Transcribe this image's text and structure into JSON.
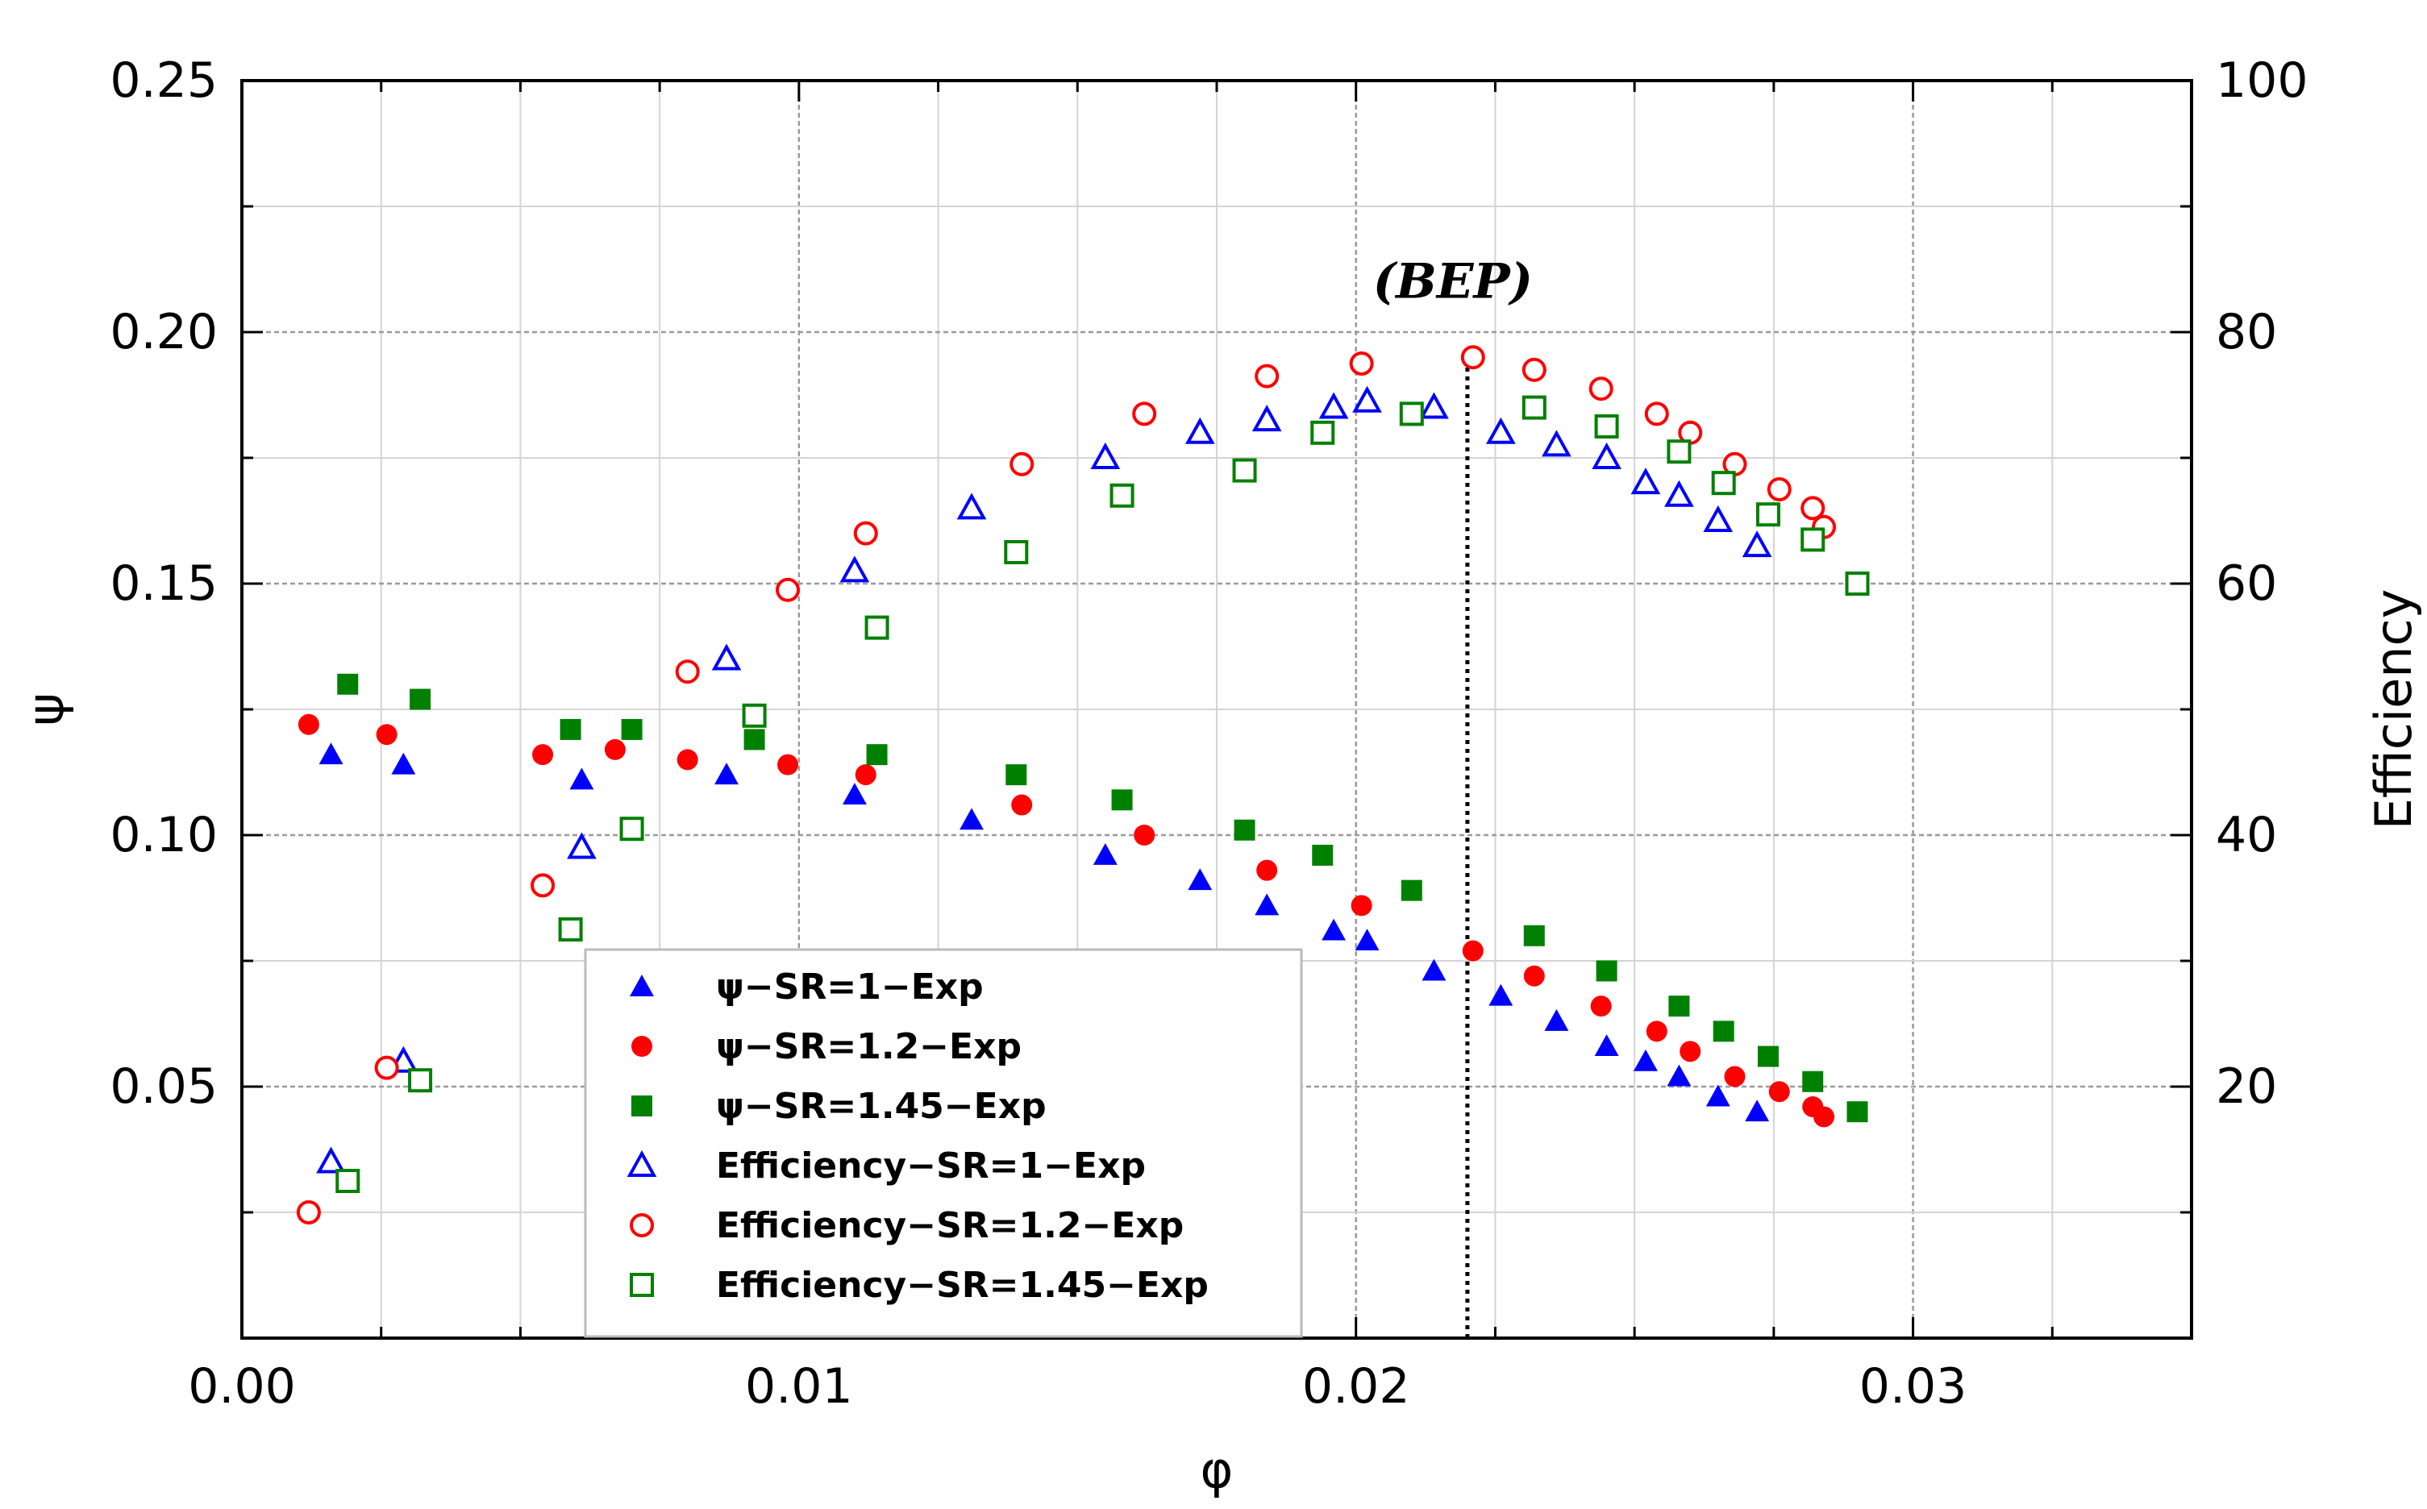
{
  "chart_data": {
    "type": "scatter",
    "title": "",
    "xlabel": "φ",
    "ylabel": "ψ",
    "y2label": "Efficiency",
    "xlim": [
      0.0,
      0.035
    ],
    "ylim": [
      0.0,
      0.25
    ],
    "y2lim": [
      0,
      100
    ],
    "x_ticks": [
      0.0,
      0.01,
      0.02,
      0.03
    ],
    "x_tick_labels": [
      "0.00",
      "0.01",
      "0.02",
      "0.03"
    ],
    "y_ticks": [
      0.05,
      0.1,
      0.15,
      0.2,
      0.25
    ],
    "y_tick_labels": [
      "0.05",
      "0.10",
      "0.15",
      "0.20",
      "0.25"
    ],
    "y2_ticks": [
      20,
      40,
      60,
      80,
      100
    ],
    "y2_tick_labels": [
      "20",
      "40",
      "60",
      "80",
      "100"
    ],
    "grid": true,
    "legend_position": "bottom-left",
    "annotation": {
      "text": "(BEP)",
      "x": 0.022,
      "y": 0.21
    },
    "reference_line": {
      "x": 0.022,
      "style": "dotted"
    },
    "series": [
      {
        "name": "ψ−SR=1−Exp",
        "axis": "left",
        "marker": "triangle",
        "filled": true,
        "color": "#0000ff",
        "x": [
          0.0016,
          0.0029,
          0.0061,
          0.0087,
          0.011,
          0.0131,
          0.0155,
          0.0172,
          0.0184,
          0.0196,
          0.0202,
          0.0214,
          0.0226,
          0.0236,
          0.0245,
          0.0252,
          0.0258,
          0.0265,
          0.0272
        ],
        "y": [
          0.116,
          0.114,
          0.111,
          0.112,
          0.108,
          0.103,
          0.096,
          0.091,
          0.086,
          0.081,
          0.079,
          0.073,
          0.068,
          0.063,
          0.058,
          0.055,
          0.052,
          0.048,
          0.045
        ]
      },
      {
        "name": "ψ−SR=1.2−Exp",
        "axis": "left",
        "marker": "circle",
        "filled": true,
        "color": "#ff0000",
        "x": [
          0.0012,
          0.0026,
          0.0054,
          0.0067,
          0.008,
          0.0098,
          0.0112,
          0.014,
          0.0162,
          0.0184,
          0.0201,
          0.0221,
          0.0232,
          0.0244,
          0.0254,
          0.026,
          0.0268,
          0.0276,
          0.0282,
          0.0284
        ],
        "y": [
          0.122,
          0.12,
          0.116,
          0.117,
          0.115,
          0.114,
          0.112,
          0.106,
          0.1,
          0.093,
          0.086,
          0.077,
          0.072,
          0.066,
          0.061,
          0.057,
          0.052,
          0.049,
          0.046,
          0.044
        ]
      },
      {
        "name": "ψ−SR=1.45−Exp",
        "axis": "left",
        "marker": "square",
        "filled": true,
        "color": "#008000",
        "x": [
          0.0019,
          0.0032,
          0.0059,
          0.007,
          0.0092,
          0.0114,
          0.0139,
          0.0158,
          0.018,
          0.0194,
          0.021,
          0.0232,
          0.0245,
          0.0258,
          0.0266,
          0.0274,
          0.0282,
          0.029
        ],
        "y": [
          0.13,
          0.127,
          0.121,
          0.121,
          0.119,
          0.116,
          0.112,
          0.107,
          0.101,
          0.096,
          0.089,
          0.08,
          0.073,
          0.066,
          0.061,
          0.056,
          0.051,
          0.045
        ]
      },
      {
        "name": "Efficiency−SR=1−Exp",
        "axis": "right",
        "marker": "triangle",
        "filled": false,
        "color": "#0000ff",
        "x": [
          0.0016,
          0.0029,
          0.0061,
          0.0087,
          0.011,
          0.0131,
          0.0155,
          0.0172,
          0.0184,
          0.0196,
          0.0202,
          0.0214,
          0.0226,
          0.0236,
          0.0245,
          0.0252,
          0.0258,
          0.0265,
          0.0272
        ],
        "y": [
          14,
          22,
          39,
          54,
          61,
          66,
          70,
          72,
          73,
          74,
          74.5,
          74,
          72,
          71,
          70,
          68,
          67,
          65,
          63
        ]
      },
      {
        "name": "Efficiency−SR=1.2−Exp",
        "axis": "right",
        "marker": "circle",
        "filled": false,
        "color": "#ff0000",
        "x": [
          0.0012,
          0.0026,
          0.0054,
          0.008,
          0.0098,
          0.0112,
          0.014,
          0.0162,
          0.0184,
          0.0201,
          0.0221,
          0.0232,
          0.0244,
          0.0254,
          0.026,
          0.0268,
          0.0276,
          0.0282,
          0.0284
        ],
        "y": [
          10,
          21.5,
          36,
          53,
          59.5,
          64,
          69.5,
          73.5,
          76.5,
          77.5,
          78,
          77,
          75.5,
          73.5,
          72,
          69.5,
          67.5,
          66,
          64.5
        ]
      },
      {
        "name": "Efficiency−SR=1.45−Exp",
        "axis": "right",
        "marker": "square",
        "filled": false,
        "color": "#008000",
        "x": [
          0.0019,
          0.0032,
          0.0059,
          0.007,
          0.0092,
          0.0114,
          0.0139,
          0.0158,
          0.018,
          0.0194,
          0.021,
          0.0232,
          0.0245,
          0.0258,
          0.0266,
          0.0274,
          0.0282,
          0.029
        ],
        "y": [
          12.5,
          20.5,
          32.5,
          40.5,
          49.5,
          56.5,
          62.5,
          67,
          69,
          72,
          73.5,
          74,
          72.5,
          70.5,
          68,
          65.5,
          63.5,
          60
        ]
      }
    ]
  }
}
